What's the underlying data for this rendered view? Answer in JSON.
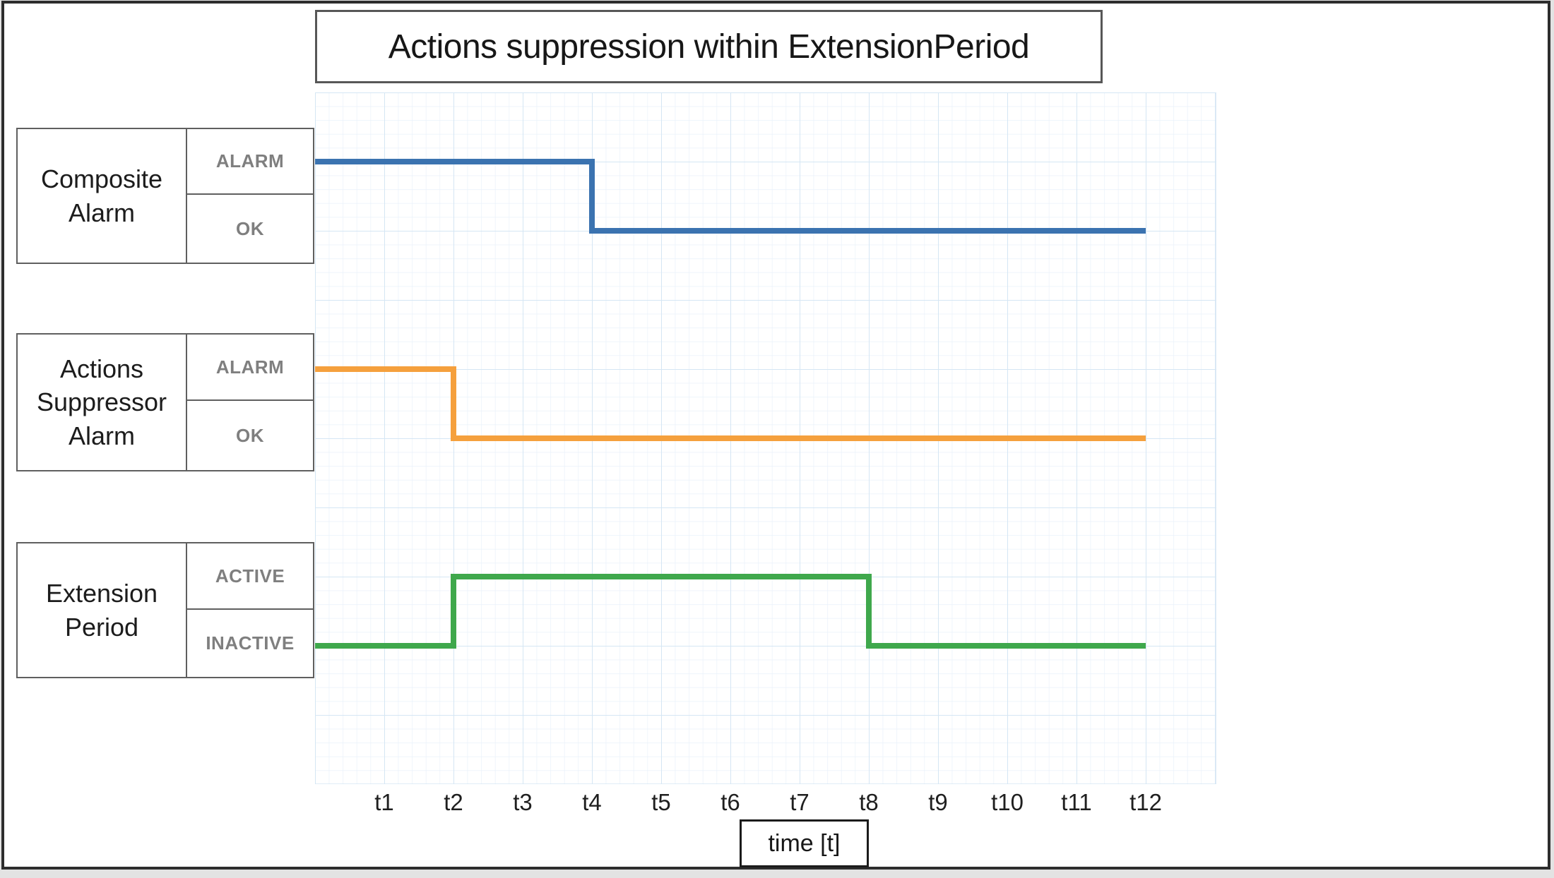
{
  "title": "Actions suppression within ExtensionPeriod",
  "rows": [
    {
      "name": "Composite Alarm",
      "label_lines": [
        "Composite",
        "Alarm"
      ],
      "states": [
        "ALARM",
        "OK"
      ],
      "color": "#3b73b0"
    },
    {
      "name": "Actions Suppressor Alarm",
      "label_lines": [
        "Actions",
        "Suppressor",
        "Alarm"
      ],
      "states": [
        "ALARM",
        "OK"
      ],
      "color": "#f5a03d"
    },
    {
      "name": "Extension Period",
      "label_lines": [
        "Extension",
        "Period"
      ],
      "states": [
        "ACTIVE",
        "INACTIVE"
      ],
      "color": "#3fa84c"
    }
  ],
  "axis": {
    "ticks": [
      "t1",
      "t2",
      "t3",
      "t4",
      "t5",
      "t6",
      "t7",
      "t8",
      "t9",
      "t10",
      "t11",
      "t12"
    ],
    "label": "time [t]"
  },
  "colors": {
    "series_blue": "#3b73b0",
    "series_orange": "#f5a03d",
    "series_green": "#3fa84c",
    "grid_minor": "#e9f1fa",
    "grid_major": "#d5e6f4",
    "box_border": "#5f5f5f",
    "state_text": "#7f7f7f",
    "frame_border": "#2d2d2d"
  },
  "chart_data": {
    "type": "line",
    "subtype": "step-timing",
    "title": "Actions suppression within ExtensionPeriod",
    "xlabel": "time [t]",
    "x_ticks": [
      "t1",
      "t2",
      "t3",
      "t4",
      "t5",
      "t6",
      "t7",
      "t8",
      "t9",
      "t10",
      "t11",
      "t12"
    ],
    "x_range_units": [
      0,
      13
    ],
    "grid": true,
    "legend": "row label boxes at left with state levels",
    "series": [
      {
        "id": "composite-alarm",
        "name": "Composite Alarm",
        "color": "#3b73b0",
        "levels": [
          "ALARM",
          "OK"
        ],
        "segments": [
          {
            "from": 0,
            "to": 4,
            "state": "ALARM"
          },
          {
            "from": 4,
            "to": 12,
            "state": "OK"
          }
        ]
      },
      {
        "id": "actions-suppressor-alarm",
        "name": "Actions Suppressor Alarm",
        "color": "#f5a03d",
        "levels": [
          "ALARM",
          "OK"
        ],
        "segments": [
          {
            "from": 0,
            "to": 2,
            "state": "ALARM"
          },
          {
            "from": 2,
            "to": 12,
            "state": "OK"
          }
        ]
      },
      {
        "id": "extension-period",
        "name": "Extension Period",
        "color": "#3fa84c",
        "levels": [
          "ACTIVE",
          "INACTIVE"
        ],
        "segments": [
          {
            "from": 0,
            "to": 2,
            "state": "INACTIVE"
          },
          {
            "from": 2,
            "to": 8,
            "state": "ACTIVE"
          },
          {
            "from": 8,
            "to": 12,
            "state": "INACTIVE"
          }
        ]
      }
    ]
  }
}
